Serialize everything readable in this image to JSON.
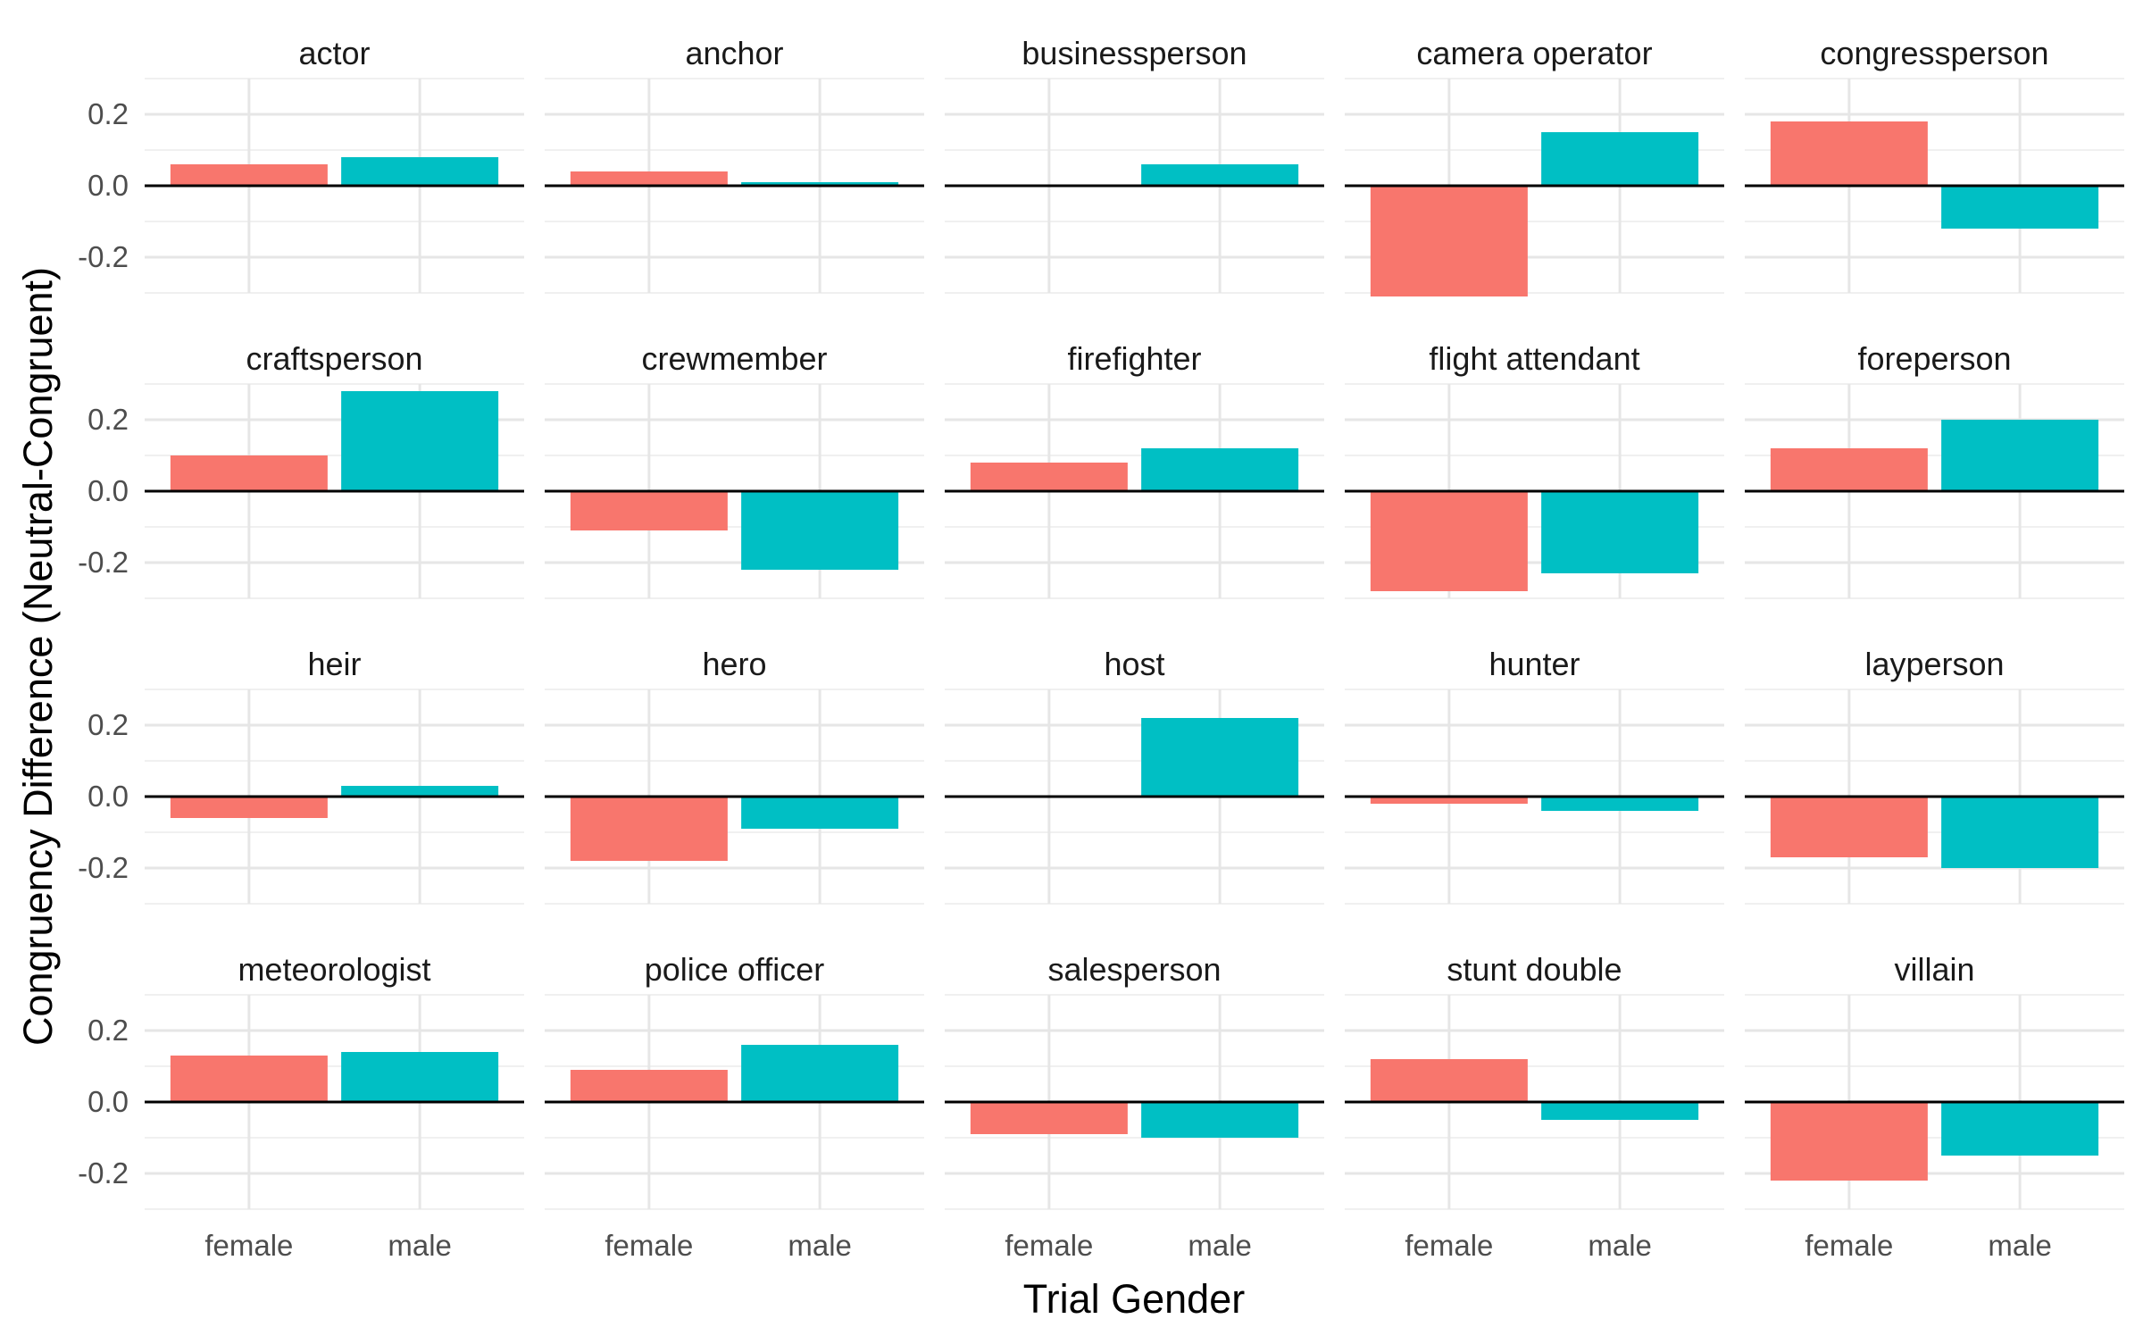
{
  "chart_data": {
    "type": "bar",
    "xlabel": "Trial Gender",
    "ylabel": "Congruency Difference (Neutral-Congruent)",
    "ylim": [
      -0.3,
      0.3
    ],
    "y_ticks": [
      "-0.2",
      "0.0",
      "0.2"
    ],
    "y_tick_values": [
      -0.2,
      0.0,
      0.2
    ],
    "categories": [
      "female",
      "male"
    ],
    "colors": {
      "female": "#F8766D",
      "male": "#00BFC4"
    },
    "grid": true,
    "legend": "none",
    "panels": [
      {
        "title": "actor",
        "values": [
          0.06,
          0.08
        ]
      },
      {
        "title": "anchor",
        "values": [
          0.04,
          0.01
        ]
      },
      {
        "title": "businessperson",
        "values": [
          0.0,
          0.06
        ]
      },
      {
        "title": "camera operator",
        "values": [
          -0.31,
          0.15
        ]
      },
      {
        "title": "congressperson",
        "values": [
          0.18,
          -0.12
        ]
      },
      {
        "title": "craftsperson",
        "values": [
          0.1,
          0.28
        ]
      },
      {
        "title": "crewmember",
        "values": [
          -0.11,
          -0.22
        ]
      },
      {
        "title": "firefighter",
        "values": [
          0.08,
          0.12
        ]
      },
      {
        "title": "flight attendant",
        "values": [
          -0.28,
          -0.23
        ]
      },
      {
        "title": "foreperson",
        "values": [
          0.12,
          0.2
        ]
      },
      {
        "title": "heir",
        "values": [
          -0.06,
          0.03
        ]
      },
      {
        "title": "hero",
        "values": [
          -0.18,
          -0.09
        ]
      },
      {
        "title": "host",
        "values": [
          0.0,
          0.22
        ]
      },
      {
        "title": "hunter",
        "values": [
          -0.02,
          -0.04
        ]
      },
      {
        "title": "layperson",
        "values": [
          -0.17,
          -0.2
        ]
      },
      {
        "title": "meteorologist",
        "values": [
          0.13,
          0.14
        ]
      },
      {
        "title": "police officer",
        "values": [
          0.09,
          0.16
        ]
      },
      {
        "title": "salesperson",
        "values": [
          -0.09,
          -0.1
        ]
      },
      {
        "title": "stunt double",
        "values": [
          0.12,
          -0.05
        ]
      },
      {
        "title": "villain",
        "values": [
          -0.22,
          -0.15
        ]
      }
    ]
  }
}
